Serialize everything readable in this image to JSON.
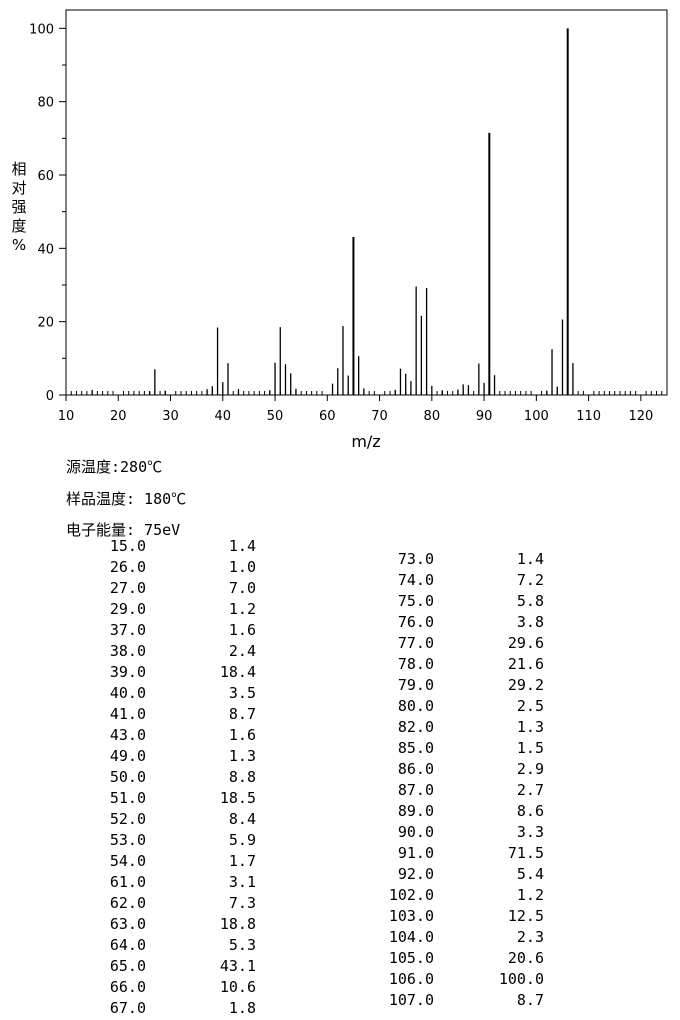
{
  "chart_data": {
    "type": "bar",
    "xlabel": "m/z",
    "ylabel": "相对强度%",
    "xlim": [
      10,
      125
    ],
    "ylim": [
      0,
      105
    ],
    "xticks": [
      10,
      20,
      30,
      40,
      50,
      60,
      70,
      80,
      90,
      100,
      110,
      120
    ],
    "yticks": [
      0,
      20,
      40,
      60,
      80,
      100
    ],
    "grid": false,
    "peaks": [
      [
        15,
        1.4
      ],
      [
        26,
        1.0
      ],
      [
        27,
        7.0
      ],
      [
        29,
        1.2
      ],
      [
        37,
        1.6
      ],
      [
        38,
        2.4
      ],
      [
        39,
        18.4
      ],
      [
        40,
        3.5
      ],
      [
        41,
        8.7
      ],
      [
        43,
        1.6
      ],
      [
        49,
        1.3
      ],
      [
        50,
        8.8
      ],
      [
        51,
        18.5
      ],
      [
        52,
        8.4
      ],
      [
        53,
        5.9
      ],
      [
        54,
        1.7
      ],
      [
        61,
        3.1
      ],
      [
        62,
        7.3
      ],
      [
        63,
        18.8
      ],
      [
        64,
        5.3
      ],
      [
        65,
        43.1
      ],
      [
        66,
        10.6
      ],
      [
        67,
        1.8
      ],
      [
        73,
        1.4
      ],
      [
        74,
        7.2
      ],
      [
        75,
        5.8
      ],
      [
        76,
        3.8
      ],
      [
        77,
        29.6
      ],
      [
        78,
        21.6
      ],
      [
        79,
        29.2
      ],
      [
        80,
        2.5
      ],
      [
        82,
        1.3
      ],
      [
        85,
        1.5
      ],
      [
        86,
        2.9
      ],
      [
        87,
        2.7
      ],
      [
        89,
        8.6
      ],
      [
        90,
        3.3
      ],
      [
        91,
        71.5
      ],
      [
        92,
        5.4
      ],
      [
        102,
        1.2
      ],
      [
        103,
        12.5
      ],
      [
        104,
        2.3
      ],
      [
        105,
        20.6
      ],
      [
        106,
        100.0
      ],
      [
        107,
        8.7
      ]
    ]
  },
  "info": {
    "source_temp": "源温度:280℃",
    "sample_temp": "样品温度: 180℃",
    "electron_energy": "电子能量: 75eV"
  },
  "table_left": [
    [
      "15.0",
      "1.4"
    ],
    [
      "26.0",
      "1.0"
    ],
    [
      "27.0",
      "7.0"
    ],
    [
      "29.0",
      "1.2"
    ],
    [
      "37.0",
      "1.6"
    ],
    [
      "38.0",
      "2.4"
    ],
    [
      "39.0",
      "18.4"
    ],
    [
      "40.0",
      "3.5"
    ],
    [
      "41.0",
      "8.7"
    ],
    [
      "43.0",
      "1.6"
    ],
    [
      "49.0",
      "1.3"
    ],
    [
      "50.0",
      "8.8"
    ],
    [
      "51.0",
      "18.5"
    ],
    [
      "52.0",
      "8.4"
    ],
    [
      "53.0",
      "5.9"
    ],
    [
      "54.0",
      "1.7"
    ],
    [
      "61.0",
      "3.1"
    ],
    [
      "62.0",
      "7.3"
    ],
    [
      "63.0",
      "18.8"
    ],
    [
      "64.0",
      "5.3"
    ],
    [
      "65.0",
      "43.1"
    ],
    [
      "66.0",
      "10.6"
    ],
    [
      "67.0",
      "1.8"
    ]
  ],
  "table_right": [
    [
      "73.0",
      "1.4"
    ],
    [
      "74.0",
      "7.2"
    ],
    [
      "75.0",
      "5.8"
    ],
    [
      "76.0",
      "3.8"
    ],
    [
      "77.0",
      "29.6"
    ],
    [
      "78.0",
      "21.6"
    ],
    [
      "79.0",
      "29.2"
    ],
    [
      "80.0",
      "2.5"
    ],
    [
      "82.0",
      "1.3"
    ],
    [
      "85.0",
      "1.5"
    ],
    [
      "86.0",
      "2.9"
    ],
    [
      "87.0",
      "2.7"
    ],
    [
      "89.0",
      "8.6"
    ],
    [
      "90.0",
      "3.3"
    ],
    [
      "91.0",
      "71.5"
    ],
    [
      "92.0",
      "5.4"
    ],
    [
      "102.0",
      "1.2"
    ],
    [
      "103.0",
      "12.5"
    ],
    [
      "104.0",
      "2.3"
    ],
    [
      "105.0",
      "20.6"
    ],
    [
      "106.0",
      "100.0"
    ],
    [
      "107.0",
      "8.7"
    ]
  ]
}
